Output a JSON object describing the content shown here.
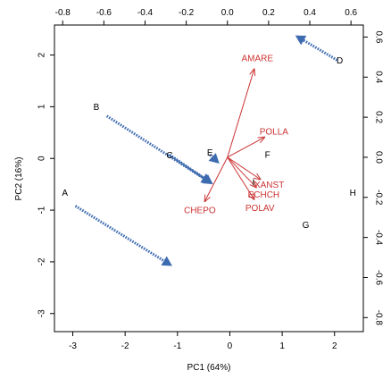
{
  "chart_data": {
    "type": "scatter",
    "title": "",
    "xlabel": "PC1 (64%)",
    "ylabel": "PC2 (16%)",
    "xlim": [
      -3.35,
      2.55
    ],
    "ylim": [
      -3.35,
      2.58
    ],
    "x_ticks": [
      -3,
      -2,
      -1,
      0,
      1,
      2
    ],
    "y_ticks": [
      -3,
      -2,
      -1,
      0,
      1,
      2
    ],
    "top_axis": {
      "lim": [
        -0.84,
        0.66
      ],
      "ticks": [
        -0.8,
        -0.6,
        -0.4,
        -0.2,
        0.0,
        0.2,
        0.4,
        0.6
      ]
    },
    "right_axis": {
      "lim": [
        -0.87,
        0.66
      ],
      "ticks": [
        -0.8,
        -0.6,
        -0.4,
        -0.2,
        0.0,
        0.2,
        0.4,
        0.6
      ]
    },
    "grid": false,
    "points": [
      {
        "label": "A",
        "x": -3.15,
        "y": -0.68
      },
      {
        "label": "B",
        "x": -2.55,
        "y": 0.98
      },
      {
        "label": "C",
        "x": -1.15,
        "y": 0.05
      },
      {
        "label": "D",
        "x": 2.1,
        "y": 1.88
      },
      {
        "label": "E",
        "x": -0.38,
        "y": 0.1
      },
      {
        "label": "F",
        "x": 0.72,
        "y": 0.06
      },
      {
        "label": "G",
        "x": 1.45,
        "y": -1.3
      },
      {
        "label": "H",
        "x": 2.35,
        "y": -0.68
      },
      {
        "label": "I",
        "x": 0.45,
        "y": -0.48
      }
    ],
    "arrows": [
      {
        "from": [
          -2.95,
          -0.92
        ],
        "to": [
          -1.1,
          -2.08
        ]
      },
      {
        "from": [
          -2.35,
          0.82
        ],
        "to": [
          -0.35,
          -0.48
        ]
      },
      {
        "from": [
          -1.15,
          0.07
        ],
        "to": [
          -0.32,
          -0.5
        ]
      },
      {
        "from": [
          2.05,
          1.9
        ],
        "to": [
          1.25,
          2.38
        ]
      },
      {
        "from": [
          -0.38,
          0.07
        ],
        "to": [
          -0.2,
          -0.1
        ]
      }
    ],
    "loadings": [
      {
        "label": "AMARE",
        "x": 0.13,
        "y": 0.44
      },
      {
        "label": "POLLA",
        "x": 0.18,
        "y": 0.1
      },
      {
        "label": "XANST",
        "x": 0.16,
        "y": -0.11
      },
      {
        "label": "ECHCH",
        "x": 0.14,
        "y": -0.15
      },
      {
        "label": "POLAV",
        "x": 0.13,
        "y": -0.21
      },
      {
        "label": "CHEPO",
        "x": -0.11,
        "y": -0.22
      }
    ],
    "colors": {
      "points": "#000000",
      "loadings": "#cc3333",
      "arrows": "#3d6bb0",
      "axes": "#000000"
    }
  }
}
